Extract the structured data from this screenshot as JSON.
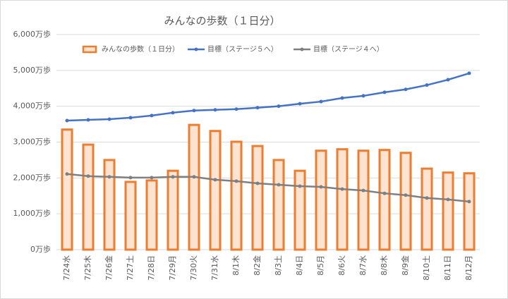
{
  "chart_data": {
    "type": "bar",
    "title": "みんなの歩数（１日分）",
    "categories": [
      "7/24水",
      "7/25木",
      "7/26金",
      "7/27土",
      "7/28日",
      "7/29月",
      "7/30火",
      "7/31水",
      "8/1木",
      "8/2金",
      "8/3土",
      "8/4日",
      "8/5月",
      "8/6火",
      "8/7水",
      "8/8木",
      "8/9金",
      "8/10土",
      "8/11日",
      "8/12月"
    ],
    "series": [
      {
        "name": "みんなの歩数（１日分）",
        "type": "bar",
        "color": "#ed7d31",
        "fill": "#fde3d0",
        "values": [
          3350,
          2930,
          2500,
          1890,
          1930,
          2200,
          3480,
          3310,
          3010,
          2890,
          2500,
          2200,
          2760,
          2800,
          2760,
          2780,
          2700,
          2260,
          2150,
          2130
        ]
      },
      {
        "name": "目標（ステージ５へ）",
        "type": "line",
        "color": "#4472c4",
        "values": [
          3600,
          3620,
          3640,
          3680,
          3740,
          3820,
          3880,
          3900,
          3920,
          3960,
          4000,
          4070,
          4130,
          4230,
          4290,
          4390,
          4470,
          4590,
          4740,
          4920
        ]
      },
      {
        "name": "目標（ステージ４へ）",
        "type": "line",
        "color": "#7f7f7f",
        "values": [
          2110,
          2050,
          2030,
          2010,
          2010,
          2030,
          2030,
          1950,
          1910,
          1850,
          1810,
          1770,
          1750,
          1690,
          1650,
          1570,
          1520,
          1440,
          1400,
          1340
        ]
      }
    ],
    "ylim": [
      0,
      6000
    ],
    "yticks": [
      {
        "value": 0,
        "label": "0万歩"
      },
      {
        "value": 1000,
        "label": "1,000万歩"
      },
      {
        "value": 2000,
        "label": "2,000万歩"
      },
      {
        "value": 3000,
        "label": "3,000万歩"
      },
      {
        "value": 4000,
        "label": "4,000万歩"
      },
      {
        "value": 5000,
        "label": "5,000万歩"
      },
      {
        "value": 6000,
        "label": "6,000万歩"
      }
    ],
    "grid": true
  }
}
